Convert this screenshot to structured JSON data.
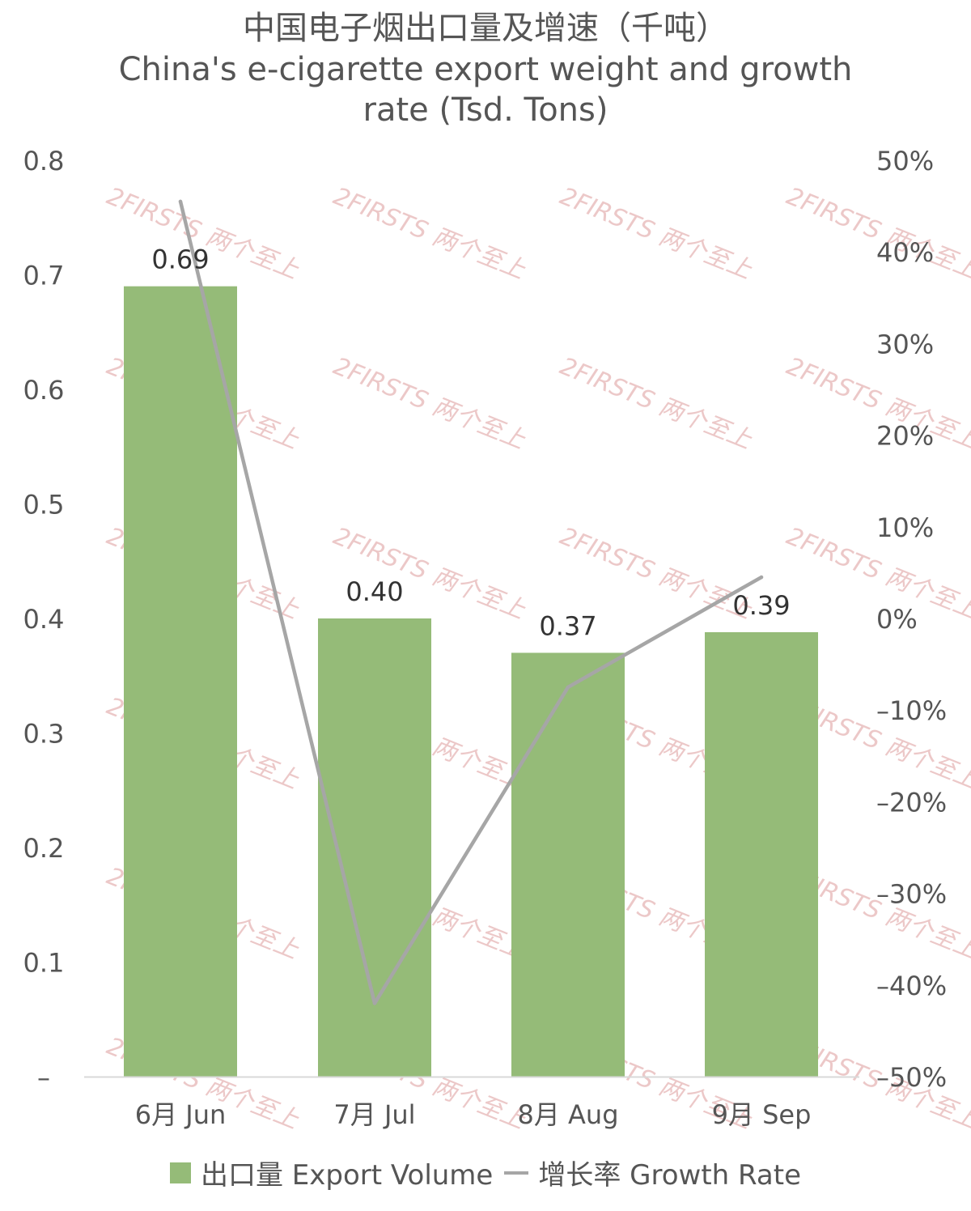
{
  "title": {
    "cn": "中国电子烟出口量及增速（千吨）",
    "en_line1": "China's e-cigarette export weight and growth",
    "en_line2": "rate (Tsd. Tons)"
  },
  "watermark": "2FIRSTS 两个至上",
  "colors": {
    "bar": "#95bb78",
    "line": "#a6a6a6",
    "axis_text": "#555555",
    "label_text": "#333333",
    "watermark": "#e6b6b6"
  },
  "chart_data": {
    "type": "bar+line",
    "categories": [
      "6月 Jun",
      "7月 Jul",
      "8月 Aug",
      "9月 Sep"
    ],
    "series": [
      {
        "name": "出口量 Export Volume",
        "type": "bar",
        "axis": "left",
        "values": [
          0.69,
          0.4,
          0.37,
          0.388
        ],
        "labels": [
          "0.69",
          "0.40",
          "0.37",
          "0.39"
        ]
      },
      {
        "name": "增长率 Growth Rate",
        "type": "line",
        "axis": "right",
        "values": [
          45.5,
          -42.0,
          -7.5,
          4.5
        ]
      }
    ],
    "y_left": {
      "ylim": [
        0,
        0.8
      ],
      "ticks": [
        0,
        0.1,
        0.2,
        0.3,
        0.4,
        0.5,
        0.6,
        0.7,
        0.8
      ],
      "tick_labels": [
        "–",
        "0.1",
        "0.2",
        "0.3",
        "0.4",
        "0.5",
        "0.6",
        "0.7",
        "0.8"
      ]
    },
    "y_right": {
      "ylim": [
        -50,
        50
      ],
      "ticks": [
        -50,
        -40,
        -30,
        -20,
        -10,
        0,
        10,
        20,
        30,
        40,
        50
      ],
      "tick_labels": [
        "–50%",
        "–40%",
        "–30%",
        "–20%",
        "–10%",
        "0%",
        "10%",
        "20%",
        "30%",
        "40%",
        "50%"
      ]
    },
    "grid": false,
    "legend": "bottom"
  }
}
